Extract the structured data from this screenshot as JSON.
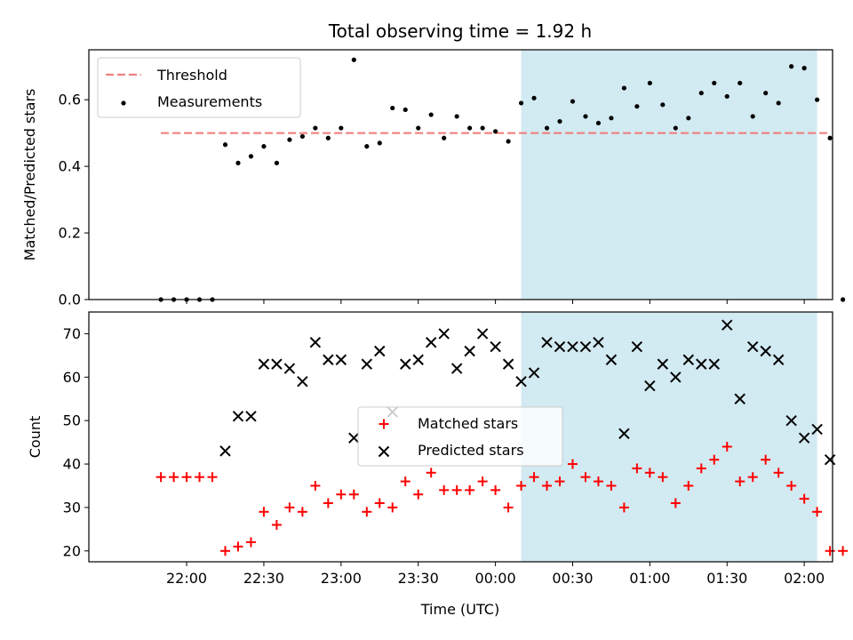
{
  "figure": {
    "title": "Total observing time = 1.92 h",
    "xlabel": "Time (UTC)",
    "xticks": [
      {
        "t": 0,
        "label": "22:00"
      },
      {
        "t": 30,
        "label": "22:30"
      },
      {
        "t": 60,
        "label": "23:00"
      },
      {
        "t": 90,
        "label": "23:30"
      },
      {
        "t": 120,
        "label": "00:00"
      },
      {
        "t": 150,
        "label": "00:30"
      },
      {
        "t": 180,
        "label": "01:00"
      },
      {
        "t": 210,
        "label": "01:30"
      },
      {
        "t": 240,
        "label": "02:00"
      }
    ],
    "shaded_span": {
      "from": "00:10",
      "to": "02:05",
      "color": "#add8e6"
    }
  },
  "chart_data": [
    {
      "type": "scatter",
      "ylabel": "Matched/Predicted stars",
      "ylim": [
        0,
        0.75
      ],
      "yticks": [
        "0.0",
        "0.2",
        "0.4",
        "0.6"
      ],
      "grid": false,
      "legend": {
        "placement": "upper left",
        "entries": [
          "Threshold",
          "Measurements"
        ]
      },
      "threshold": {
        "name": "Threshold",
        "value": 0.5,
        "style": "dashed",
        "color": "#f08080",
        "from": "21:50",
        "to": "02:10"
      },
      "series": [
        {
          "name": "Measurements",
          "color": "#000000",
          "points": [
            [
              "21:50",
              0.0
            ],
            [
              "21:55",
              0.0
            ],
            [
              "22:00",
              0.0
            ],
            [
              "22:05",
              0.0
            ],
            [
              "22:10",
              0.0
            ],
            [
              "22:15",
              0.465
            ],
            [
              "22:20",
              0.41
            ],
            [
              "22:25",
              0.43
            ],
            [
              "22:30",
              0.46
            ],
            [
              "22:35",
              0.41
            ],
            [
              "22:40",
              0.48
            ],
            [
              "22:45",
              0.49
            ],
            [
              "22:50",
              0.515
            ],
            [
              "22:55",
              0.485
            ],
            [
              "23:00",
              0.515
            ],
            [
              "23:05",
              0.72
            ],
            [
              "23:10",
              0.46
            ],
            [
              "23:15",
              0.47
            ],
            [
              "23:20",
              0.575
            ],
            [
              "23:25",
              0.57
            ],
            [
              "23:30",
              0.515
            ],
            [
              "23:35",
              0.555
            ],
            [
              "23:40",
              0.485
            ],
            [
              "23:45",
              0.55
            ],
            [
              "23:50",
              0.515
            ],
            [
              "23:55",
              0.515
            ],
            [
              "00:00",
              0.505
            ],
            [
              "00:05",
              0.475
            ],
            [
              "00:10",
              0.59
            ],
            [
              "00:15",
              0.605
            ],
            [
              "00:20",
              0.515
            ],
            [
              "00:25",
              0.535
            ],
            [
              "00:30",
              0.595
            ],
            [
              "00:35",
              0.55
            ],
            [
              "00:40",
              0.53
            ],
            [
              "00:45",
              0.545
            ],
            [
              "00:50",
              0.635
            ],
            [
              "00:55",
              0.58
            ],
            [
              "01:00",
              0.65
            ],
            [
              "01:05",
              0.585
            ],
            [
              "01:10",
              0.515
            ],
            [
              "01:15",
              0.545
            ],
            [
              "01:20",
              0.62
            ],
            [
              "01:25",
              0.65
            ],
            [
              "01:30",
              0.61
            ],
            [
              "01:35",
              0.65
            ],
            [
              "01:40",
              0.55
            ],
            [
              "01:45",
              0.62
            ],
            [
              "01:50",
              0.59
            ],
            [
              "01:55",
              0.7
            ],
            [
              "02:00",
              0.695
            ],
            [
              "02:05",
              0.6
            ],
            [
              "02:10",
              0.485
            ],
            [
              "02:15",
              0.0
            ]
          ]
        }
      ]
    },
    {
      "type": "scatter",
      "ylabel": "Count",
      "ylim": [
        17.5,
        75
      ],
      "yticks": [
        "20",
        "30",
        "40",
        "50",
        "60",
        "70"
      ],
      "grid": false,
      "legend": {
        "placement": "center",
        "entries": [
          "Matched stars",
          "Predicted stars"
        ]
      },
      "series": [
        {
          "name": "Matched stars",
          "marker": "+",
          "color": "#ff0000",
          "points": [
            [
              "21:50",
              37
            ],
            [
              "21:55",
              37
            ],
            [
              "22:00",
              37
            ],
            [
              "22:05",
              37
            ],
            [
              "22:10",
              37
            ],
            [
              "22:15",
              20
            ],
            [
              "22:20",
              21
            ],
            [
              "22:25",
              22
            ],
            [
              "22:30",
              29
            ],
            [
              "22:35",
              26
            ],
            [
              "22:40",
              30
            ],
            [
              "22:45",
              29
            ],
            [
              "22:50",
              35
            ],
            [
              "22:55",
              31
            ],
            [
              "23:00",
              33
            ],
            [
              "23:05",
              33
            ],
            [
              "23:10",
              29
            ],
            [
              "23:15",
              31
            ],
            [
              "23:20",
              30
            ],
            [
              "23:25",
              36
            ],
            [
              "23:30",
              33
            ],
            [
              "23:35",
              38
            ],
            [
              "23:40",
              34
            ],
            [
              "23:45",
              34
            ],
            [
              "23:50",
              34
            ],
            [
              "23:55",
              36
            ],
            [
              "00:00",
              34
            ],
            [
              "00:05",
              30
            ],
            [
              "00:10",
              35
            ],
            [
              "00:15",
              37
            ],
            [
              "00:20",
              35
            ],
            [
              "00:25",
              36
            ],
            [
              "00:30",
              40
            ],
            [
              "00:35",
              37
            ],
            [
              "00:40",
              36
            ],
            [
              "00:45",
              35
            ],
            [
              "00:50",
              30
            ],
            [
              "00:55",
              39
            ],
            [
              "01:00",
              38
            ],
            [
              "01:05",
              37
            ],
            [
              "01:10",
              31
            ],
            [
              "01:15",
              35
            ],
            [
              "01:20",
              39
            ],
            [
              "01:25",
              41
            ],
            [
              "01:30",
              44
            ],
            [
              "01:35",
              36
            ],
            [
              "01:40",
              37
            ],
            [
              "01:45",
              41
            ],
            [
              "01:50",
              38
            ],
            [
              "01:55",
              35
            ],
            [
              "02:00",
              32
            ],
            [
              "02:05",
              29
            ],
            [
              "02:10",
              20
            ],
            [
              "02:15",
              20
            ]
          ]
        },
        {
          "name": "Predicted stars",
          "marker": "x",
          "color": "#000000",
          "points": [
            [
              "22:15",
              43
            ],
            [
              "22:20",
              51
            ],
            [
              "22:25",
              51
            ],
            [
              "22:30",
              63
            ],
            [
              "22:35",
              63
            ],
            [
              "22:40",
              62
            ],
            [
              "22:45",
              59
            ],
            [
              "22:50",
              68
            ],
            [
              "22:55",
              64
            ],
            [
              "23:00",
              64
            ],
            [
              "23:05",
              46
            ],
            [
              "23:10",
              63
            ],
            [
              "23:15",
              66
            ],
            [
              "23:20",
              52
            ],
            [
              "23:25",
              63
            ],
            [
              "23:30",
              64
            ],
            [
              "23:35",
              68
            ],
            [
              "23:40",
              70
            ],
            [
              "23:45",
              62
            ],
            [
              "23:50",
              66
            ],
            [
              "23:55",
              70
            ],
            [
              "00:00",
              67
            ],
            [
              "00:05",
              63
            ],
            [
              "00:10",
              59
            ],
            [
              "00:15",
              61
            ],
            [
              "00:20",
              68
            ],
            [
              "00:25",
              67
            ],
            [
              "00:30",
              67
            ],
            [
              "00:35",
              67
            ],
            [
              "00:40",
              68
            ],
            [
              "00:45",
              64
            ],
            [
              "00:50",
              47
            ],
            [
              "00:55",
              67
            ],
            [
              "01:00",
              58
            ],
            [
              "01:05",
              63
            ],
            [
              "01:10",
              60
            ],
            [
              "01:15",
              64
            ],
            [
              "01:20",
              63
            ],
            [
              "01:25",
              63
            ],
            [
              "01:30",
              72
            ],
            [
              "01:35",
              55
            ],
            [
              "01:40",
              67
            ],
            [
              "01:45",
              66
            ],
            [
              "01:50",
              64
            ],
            [
              "01:55",
              50
            ],
            [
              "02:00",
              46
            ],
            [
              "02:05",
              48
            ],
            [
              "02:10",
              41
            ]
          ]
        }
      ]
    }
  ]
}
